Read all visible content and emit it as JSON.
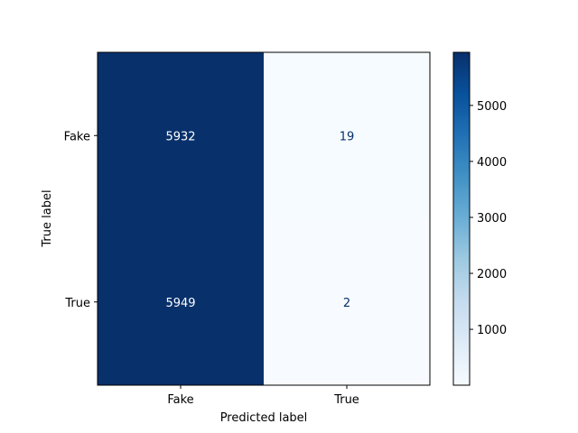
{
  "chart_data": {
    "type": "heatmap",
    "title": "",
    "xlabel": "Predicted label",
    "ylabel": "True label",
    "x_categories": [
      "Fake",
      "True"
    ],
    "y_categories": [
      "Fake",
      "True"
    ],
    "matrix": [
      [
        5932,
        19
      ],
      [
        5949,
        2
      ]
    ],
    "colormap": "Blues",
    "color_low": "#f7fbff",
    "color_high": "#08306b",
    "text_light": "#ffffff",
    "text_dark": "#08306b",
    "colorbar": {
      "range": [
        2,
        5949
      ],
      "ticks": [
        1000,
        2000,
        3000,
        4000,
        5000
      ],
      "tick_labels": [
        "1000",
        "2000",
        "3000",
        "4000",
        "5000"
      ]
    },
    "grid": false,
    "legend": "none"
  }
}
